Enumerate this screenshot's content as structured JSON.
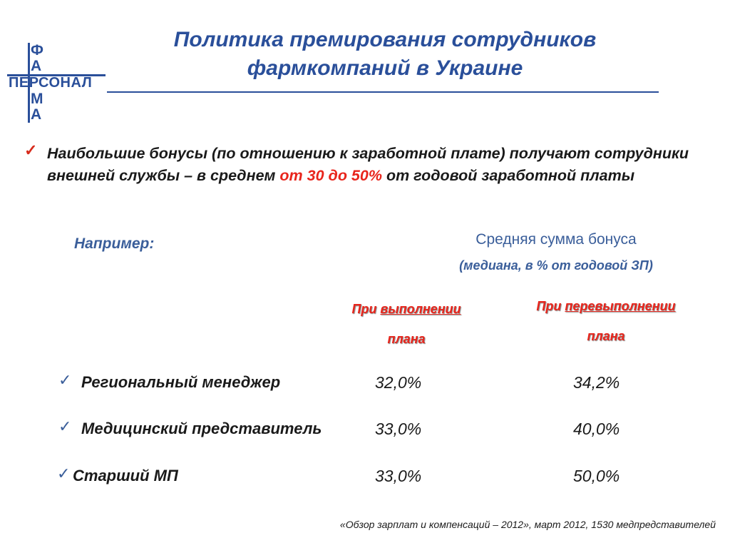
{
  "logo": {
    "top_letters": [
      "Ф",
      "А"
    ],
    "word": "ПЕРСОНАЛ",
    "bottom_letters": [
      "М",
      "А"
    ]
  },
  "title": {
    "line1": "Политика премирования сотрудников",
    "line2": "фармкомпаний в Украине"
  },
  "main_bullet": {
    "text_before": "Наибольшие бонусы (по отношению к заработной плате) получают сотрудники внешней службы – в среднем ",
    "highlight": "от 30 до 50%",
    "text_after": " от годовой заработной платы"
  },
  "example_label": "Например:",
  "average_bonus": {
    "title": "Средняя сумма бонуса",
    "subtitle": "(медиана, в % от годовой ЗП)"
  },
  "columns": [
    {
      "prefix": "При ",
      "underlined": "выполнении",
      "line2": "плана"
    },
    {
      "prefix": "При ",
      "underlined": "перевыполнении",
      "line2": "плана"
    }
  ],
  "rows": [
    {
      "label": "Региональный менеджер",
      "plan": "32,0%",
      "over": "34,2%"
    },
    {
      "label": "Медицинский представитель",
      "plan": "33,0%",
      "over": "40,0%"
    },
    {
      "label": "Старший МП",
      "plan": "33,0%",
      "over": "50,0%"
    }
  ],
  "source": "«Обзор зарплат и компенсаций – 2012», март 2012, 1530 медпредставителей",
  "colors": {
    "accent_blue": "#2a4f9a",
    "highlight_red": "#e8251c"
  }
}
